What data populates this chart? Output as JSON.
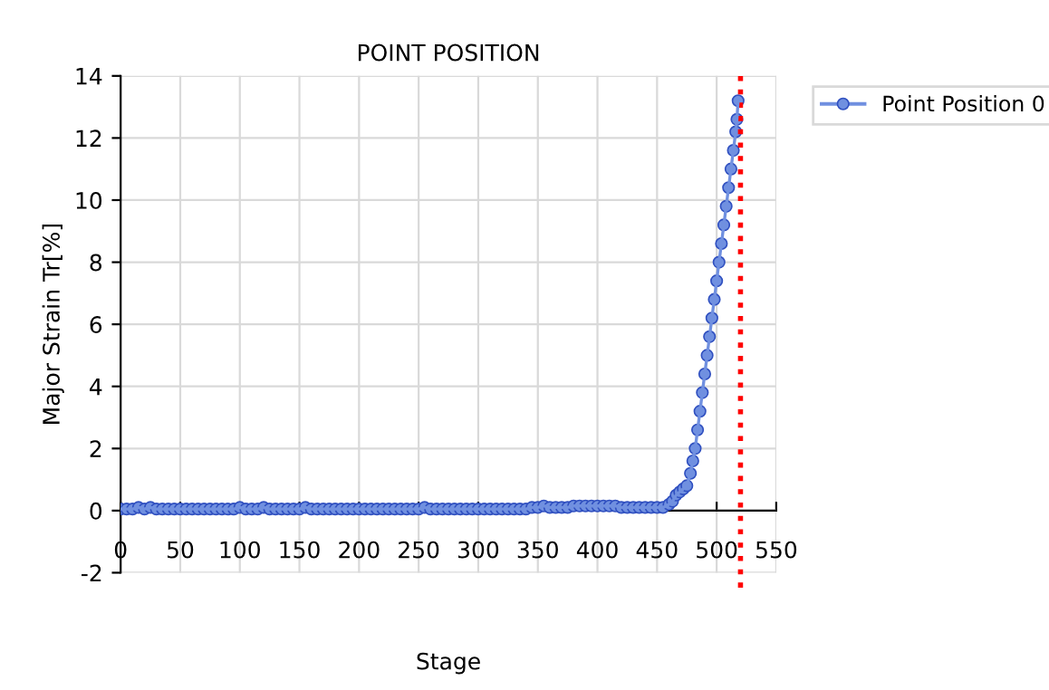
{
  "chart_data": {
    "type": "line",
    "title": "POINT POSITION",
    "xlabel": "Stage",
    "ylabel": "Major Strain Tr[%]",
    "xlim": [
      0,
      550
    ],
    "xticks": [
      0,
      50,
      100,
      150,
      200,
      250,
      300,
      350,
      400,
      450,
      500,
      550
    ],
    "ylim": [
      -2,
      14
    ],
    "yticks": [
      -2,
      0,
      2,
      4,
      6,
      8,
      10,
      12,
      14
    ],
    "grid": true,
    "legend": "top right",
    "marker": "circle",
    "line_style": "solid",
    "ref_lines": [
      {
        "axis": "x",
        "value": 520,
        "color": "#ff0000",
        "line_style": "dotted"
      }
    ],
    "series": [
      {
        "name": "Point Position 0",
        "color": "#7090e0",
        "x": [
          0,
          5,
          10,
          15,
          20,
          25,
          30,
          35,
          40,
          45,
          50,
          55,
          60,
          65,
          70,
          75,
          80,
          85,
          90,
          95,
          100,
          105,
          110,
          115,
          120,
          125,
          130,
          135,
          140,
          145,
          150,
          155,
          160,
          165,
          170,
          175,
          180,
          185,
          190,
          195,
          200,
          205,
          210,
          215,
          220,
          225,
          230,
          235,
          240,
          245,
          250,
          255,
          260,
          265,
          270,
          275,
          280,
          285,
          290,
          295,
          300,
          305,
          310,
          315,
          320,
          325,
          330,
          335,
          340,
          345,
          350,
          355,
          360,
          365,
          370,
          375,
          380,
          385,
          390,
          395,
          400,
          405,
          410,
          415,
          420,
          425,
          430,
          435,
          440,
          445,
          450,
          455,
          460,
          463,
          466,
          469,
          472,
          475,
          478,
          480,
          482,
          484,
          486,
          488,
          490,
          492,
          494,
          496,
          498,
          500,
          502,
          504,
          506,
          508,
          510,
          512,
          514,
          516,
          517,
          518
        ],
        "values": [
          0.05,
          0.05,
          0.05,
          0.1,
          0.05,
          0.1,
          0.05,
          0.05,
          0.05,
          0.05,
          0.05,
          0.05,
          0.05,
          0.05,
          0.05,
          0.05,
          0.05,
          0.05,
          0.05,
          0.05,
          0.1,
          0.05,
          0.05,
          0.05,
          0.1,
          0.05,
          0.05,
          0.05,
          0.05,
          0.05,
          0.05,
          0.1,
          0.05,
          0.05,
          0.05,
          0.05,
          0.05,
          0.05,
          0.05,
          0.05,
          0.05,
          0.05,
          0.05,
          0.05,
          0.05,
          0.05,
          0.05,
          0.05,
          0.05,
          0.05,
          0.05,
          0.1,
          0.05,
          0.05,
          0.05,
          0.05,
          0.05,
          0.05,
          0.05,
          0.05,
          0.05,
          0.05,
          0.05,
          0.05,
          0.05,
          0.05,
          0.05,
          0.05,
          0.05,
          0.1,
          0.1,
          0.15,
          0.1,
          0.1,
          0.1,
          0.1,
          0.15,
          0.15,
          0.15,
          0.15,
          0.15,
          0.15,
          0.15,
          0.15,
          0.1,
          0.1,
          0.1,
          0.1,
          0.1,
          0.1,
          0.1,
          0.1,
          0.2,
          0.3,
          0.5,
          0.6,
          0.7,
          0.8,
          1.2,
          1.6,
          2.0,
          2.6,
          3.2,
          3.8,
          4.4,
          5.0,
          5.6,
          6.2,
          6.8,
          7.4,
          8.0,
          8.6,
          9.2,
          9.8,
          10.4,
          11.0,
          11.6,
          12.2,
          12.6,
          13.2
        ]
      }
    ]
  }
}
